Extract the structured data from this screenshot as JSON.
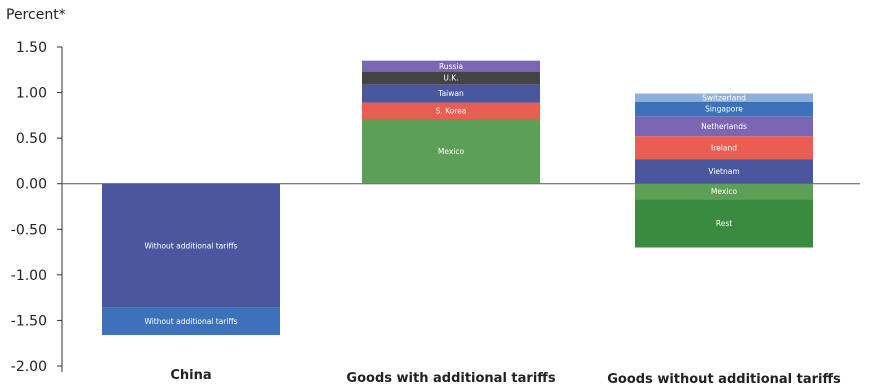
{
  "chart_data": {
    "type": "bar",
    "stacked": true,
    "ylabel": "Percent*",
    "ylim": [
      -2.0,
      1.5
    ],
    "yticks": [
      1.5,
      1.0,
      0.5,
      0.0,
      -0.5,
      -1.0,
      -1.5,
      -2.0
    ],
    "ytick_labels": [
      "1.50",
      "1.00",
      "0.50",
      "0.00",
      "-0.50",
      "-1.00",
      "-1.50",
      "-2.00"
    ],
    "grid": false,
    "legend": "none",
    "categories": [
      "China",
      "Goods with additional tariffs",
      "Goods without additional tariffs"
    ],
    "bars": [
      {
        "category": "China",
        "segments": [
          {
            "label": "Without additional tariffs",
            "value": -1.36,
            "color": "#4a579f"
          },
          {
            "label": "Without additional tariffs",
            "value": -0.3,
            "color": "#3b72b9"
          }
        ]
      },
      {
        "category": "Goods with additional tariffs",
        "segments": [
          {
            "label": "Mexico",
            "value": 0.71,
            "color": "#5d9f56"
          },
          {
            "label": "S. Korea",
            "value": 0.18,
            "color": "#e95d53"
          },
          {
            "label": "Taiwan",
            "value": 0.2,
            "color": "#4a579f"
          },
          {
            "label": "U.K.",
            "value": 0.14,
            "color": "#444444"
          },
          {
            "label": "Russia",
            "value": 0.12,
            "color": "#7a66b3"
          }
        ]
      },
      {
        "category": "Goods without additional tariffs",
        "segments": [
          {
            "label": "Vietnam",
            "value": 0.27,
            "color": "#4a579f"
          },
          {
            "label": "Ireland",
            "value": 0.25,
            "color": "#e95d53"
          },
          {
            "label": "Netherlands",
            "value": 0.22,
            "color": "#7a66b3"
          },
          {
            "label": "Singapore",
            "value": 0.16,
            "color": "#3b72b9"
          },
          {
            "label": "Switzerland",
            "value": 0.09,
            "color": "#8fb0db"
          },
          {
            "label": "Mexico",
            "value": -0.17,
            "color": "#5d9f56"
          },
          {
            "label": "Rest",
            "value": -0.53,
            "color": "#3a8b3f"
          }
        ]
      }
    ]
  }
}
